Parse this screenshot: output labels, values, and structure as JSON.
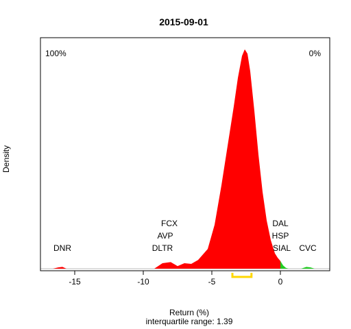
{
  "chart_data": {
    "type": "area",
    "title": "2015-09-01",
    "xlabel": "Return (%)",
    "ylabel": "Density",
    "subtitle": "interquartile range: 1.39",
    "xlim": [
      -17.5,
      3.6
    ],
    "ylim": [
      0,
      1
    ],
    "x_ticks": [
      -15,
      -10,
      -5,
      0
    ],
    "grid": false,
    "corner_labels": {
      "left": "100%",
      "right": "0%"
    },
    "colors": {
      "negative": "#ff0000",
      "positive": "#22cc22",
      "iqr": "#ffd700",
      "baseline": "#bebebe",
      "left_pct": "#ff0000",
      "right_pct": "#008800"
    },
    "density": {
      "x": [
        -16.6,
        -16.2,
        -15.9,
        -15.6,
        -9.2,
        -8.6,
        -8.0,
        -7.5,
        -7.0,
        -6.5,
        -6.0,
        -5.3,
        -4.8,
        -4.3,
        -3.8,
        -3.4,
        -3.1,
        -2.8,
        -2.6,
        -2.4,
        -2.2,
        -1.9,
        -1.6,
        -1.3,
        -1.0,
        -0.7,
        -0.4,
        -0.2,
        0.0,
        0.2,
        0.4,
        0.6,
        1.5,
        1.9,
        2.2,
        2.5
      ],
      "y": [
        0,
        0.006,
        0.008,
        0,
        0,
        0.025,
        0.03,
        0.012,
        0.025,
        0.022,
        0.04,
        0.09,
        0.2,
        0.38,
        0.58,
        0.74,
        0.87,
        0.97,
        1.0,
        0.98,
        0.9,
        0.72,
        0.52,
        0.35,
        0.22,
        0.13,
        0.07,
        0.05,
        0.035,
        0.015,
        0.004,
        0,
        0,
        0.008,
        0.006,
        0
      ]
    },
    "iqr": [
      -3.5,
      -2.11
    ],
    "annotations": [
      {
        "text": "DNR",
        "x": -15.9,
        "row": 0
      },
      {
        "text": "DLTR",
        "x": -8.6,
        "row": 0
      },
      {
        "text": "AVP",
        "x": -8.4,
        "row": 1
      },
      {
        "text": "FCX",
        "x": -8.1,
        "row": 2
      },
      {
        "text": "SIAL",
        "x": 0.1,
        "row": 0
      },
      {
        "text": "HSP",
        "x": 0.0,
        "row": 1
      },
      {
        "text": "DAL",
        "x": 0.0,
        "row": 2
      },
      {
        "text": "CVC",
        "x": 2.0,
        "row": 0
      }
    ]
  }
}
